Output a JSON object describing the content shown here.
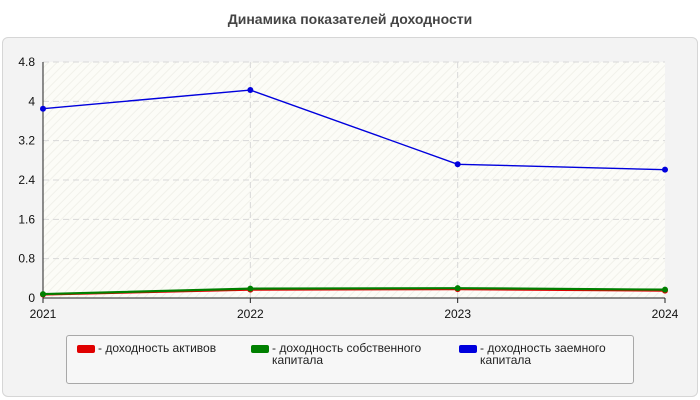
{
  "chart_data": {
    "type": "line",
    "title": "Динамика показателей доходности",
    "categories": [
      "2021",
      "2022",
      "2023",
      "2024"
    ],
    "ylim": [
      0,
      4.8
    ],
    "yticks": [
      "0",
      "0.8",
      "1.6",
      "2.4",
      "3.2",
      "4",
      "4.8"
    ],
    "grid": true,
    "legend_position": "bottom",
    "series": [
      {
        "name": "- доходность активов",
        "color": "#e00000",
        "values": [
          0.07,
          0.17,
          0.18,
          0.15
        ]
      },
      {
        "name": "- доходность собственного капитала",
        "color": "#008000",
        "values": [
          0.08,
          0.19,
          0.2,
          0.17
        ]
      },
      {
        "name": "- доходность заемного капитала",
        "color": "#0000dd",
        "values": [
          3.85,
          4.23,
          2.72,
          2.61
        ]
      }
    ]
  }
}
